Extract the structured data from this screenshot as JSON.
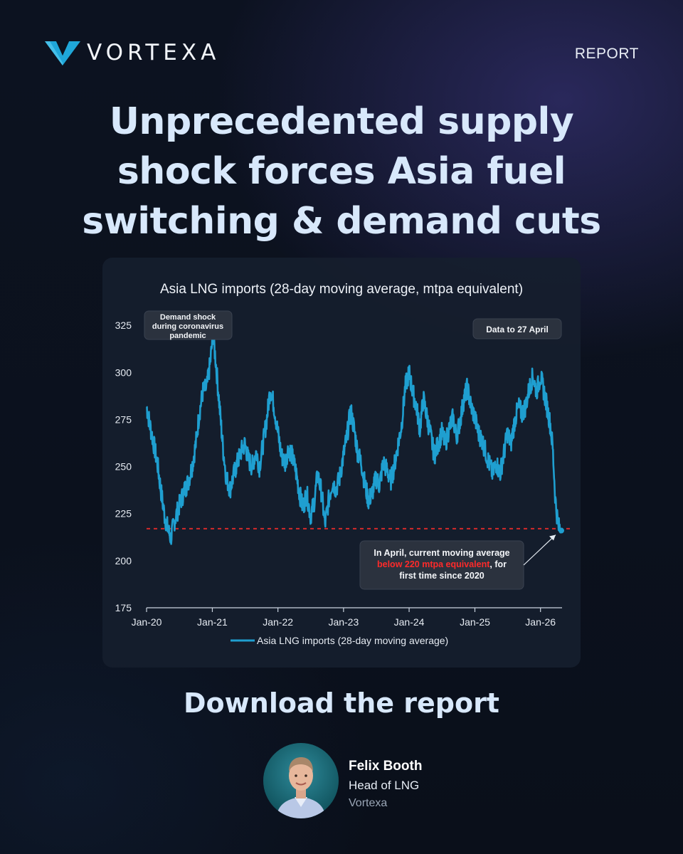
{
  "brand": {
    "name": "VORTEXA",
    "tag": "REPORT"
  },
  "headline": [
    "Unprecedented supply",
    "shock forces Asia fuel",
    "switching & demand cuts"
  ],
  "chart_data": {
    "type": "line",
    "title": "Asia LNG imports (28-day moving average, mtpa equivalent)",
    "xlabel": "",
    "ylabel": "",
    "ylim": [
      175,
      330
    ],
    "yticks": [
      175,
      200,
      225,
      250,
      275,
      300,
      325
    ],
    "xlim": [
      "2020-01",
      "2026-05"
    ],
    "xticks": [
      "Jan-20",
      "Jan-21",
      "Jan-22",
      "Jan-23",
      "Jan-24",
      "Jan-25",
      "Jan-26"
    ],
    "legend_position": "bottom",
    "threshold": {
      "value": 217,
      "style": "dashed",
      "color": "#d42a2a"
    },
    "series": [
      {
        "name": "Asia LNG imports (28-day moving average)",
        "color": "#1f9fd0",
        "points": [
          [
            "2020-01-01",
            282
          ],
          [
            "2020-01-20",
            272
          ],
          [
            "2020-02-10",
            262
          ],
          [
            "2020-03-01",
            252
          ],
          [
            "2020-03-20",
            238
          ],
          [
            "2020-04-10",
            224
          ],
          [
            "2020-05-01",
            216
          ],
          [
            "2020-05-15",
            212
          ],
          [
            "2020-06-01",
            220
          ],
          [
            "2020-06-20",
            226
          ],
          [
            "2020-07-10",
            232
          ],
          [
            "2020-08-01",
            238
          ],
          [
            "2020-08-20",
            242
          ],
          [
            "2020-09-10",
            250
          ],
          [
            "2020-10-01",
            262
          ],
          [
            "2020-10-20",
            278
          ],
          [
            "2020-11-10",
            290
          ],
          [
            "2020-12-01",
            292
          ],
          [
            "2020-12-20",
            305
          ],
          [
            "2021-01-05",
            320
          ],
          [
            "2021-01-20",
            306
          ],
          [
            "2021-02-10",
            282
          ],
          [
            "2021-03-01",
            260
          ],
          [
            "2021-03-20",
            244
          ],
          [
            "2021-04-10",
            238
          ],
          [
            "2021-05-01",
            246
          ],
          [
            "2021-05-20",
            252
          ],
          [
            "2021-06-10",
            258
          ],
          [
            "2021-07-01",
            262
          ],
          [
            "2021-07-20",
            254
          ],
          [
            "2021-08-10",
            250
          ],
          [
            "2021-09-01",
            258
          ],
          [
            "2021-09-20",
            250
          ],
          [
            "2021-10-10",
            262
          ],
          [
            "2021-11-01",
            276
          ],
          [
            "2021-11-20",
            292
          ],
          [
            "2021-12-10",
            282
          ],
          [
            "2022-01-01",
            268
          ],
          [
            "2022-01-20",
            256
          ],
          [
            "2022-02-10",
            252
          ],
          [
            "2022-03-01",
            260
          ],
          [
            "2022-03-20",
            256
          ],
          [
            "2022-04-10",
            248
          ],
          [
            "2022-05-01",
            236
          ],
          [
            "2022-05-20",
            228
          ],
          [
            "2022-06-10",
            236
          ],
          [
            "2022-07-01",
            224
          ],
          [
            "2022-07-20",
            230
          ],
          [
            "2022-08-10",
            246
          ],
          [
            "2022-09-01",
            236
          ],
          [
            "2022-09-20",
            219
          ],
          [
            "2022-10-10",
            232
          ],
          [
            "2022-11-01",
            242
          ],
          [
            "2022-11-20",
            238
          ],
          [
            "2022-12-10",
            244
          ],
          [
            "2023-01-01",
            256
          ],
          [
            "2023-01-20",
            266
          ],
          [
            "2023-02-10",
            280
          ],
          [
            "2023-03-01",
            270
          ],
          [
            "2023-03-20",
            258
          ],
          [
            "2023-04-10",
            252
          ],
          [
            "2023-05-01",
            240
          ],
          [
            "2023-05-20",
            232
          ],
          [
            "2023-06-10",
            236
          ],
          [
            "2023-07-01",
            244
          ],
          [
            "2023-07-20",
            240
          ],
          [
            "2023-08-10",
            252
          ],
          [
            "2023-09-01",
            248
          ],
          [
            "2023-09-20",
            242
          ],
          [
            "2023-10-10",
            250
          ],
          [
            "2023-11-01",
            262
          ],
          [
            "2023-11-20",
            272
          ],
          [
            "2023-12-10",
            292
          ],
          [
            "2024-01-01",
            300
          ],
          [
            "2024-01-20",
            290
          ],
          [
            "2024-02-10",
            282
          ],
          [
            "2024-03-01",
            270
          ],
          [
            "2024-03-20",
            286
          ],
          [
            "2024-04-10",
            276
          ],
          [
            "2024-05-01",
            266
          ],
          [
            "2024-05-20",
            256
          ],
          [
            "2024-06-10",
            262
          ],
          [
            "2024-07-01",
            268
          ],
          [
            "2024-07-20",
            262
          ],
          [
            "2024-08-10",
            270
          ],
          [
            "2024-09-01",
            276
          ],
          [
            "2024-09-20",
            266
          ],
          [
            "2024-10-10",
            274
          ],
          [
            "2024-11-01",
            286
          ],
          [
            "2024-11-20",
            292
          ],
          [
            "2024-12-10",
            282
          ],
          [
            "2025-01-01",
            276
          ],
          [
            "2025-01-20",
            268
          ],
          [
            "2025-02-10",
            264
          ],
          [
            "2025-03-01",
            258
          ],
          [
            "2025-03-20",
            252
          ],
          [
            "2025-04-10",
            246
          ],
          [
            "2025-05-01",
            252
          ],
          [
            "2025-05-20",
            246
          ],
          [
            "2025-06-10",
            256
          ],
          [
            "2025-07-01",
            268
          ],
          [
            "2025-07-20",
            262
          ],
          [
            "2025-08-10",
            274
          ],
          [
            "2025-09-01",
            282
          ],
          [
            "2025-09-20",
            278
          ],
          [
            "2025-10-10",
            282
          ],
          [
            "2025-11-01",
            292
          ],
          [
            "2025-11-20",
            298
          ],
          [
            "2025-12-10",
            290
          ],
          [
            "2026-01-01",
            298
          ],
          [
            "2026-01-20",
            290
          ],
          [
            "2026-02-10",
            280
          ],
          [
            "2026-02-25",
            272
          ],
          [
            "2026-03-10",
            260
          ],
          [
            "2026-03-25",
            232
          ],
          [
            "2026-04-10",
            218
          ],
          [
            "2026-04-27",
            216
          ]
        ]
      }
    ],
    "annotations": [
      {
        "text": "Demand shock during coronavirus pandemic"
      },
      {
        "text": "Data to 27 April"
      },
      {
        "text_before": "In April, current moving average",
        "highlight": "below 220 mtpa equivalent",
        "text_after": ", for first time since 2020",
        "highlight_color": "#ff2a2a"
      }
    ]
  },
  "cta": "Download the report",
  "author": {
    "name": "Felix Booth",
    "role": "Head of LNG",
    "org": "Vortexa"
  }
}
